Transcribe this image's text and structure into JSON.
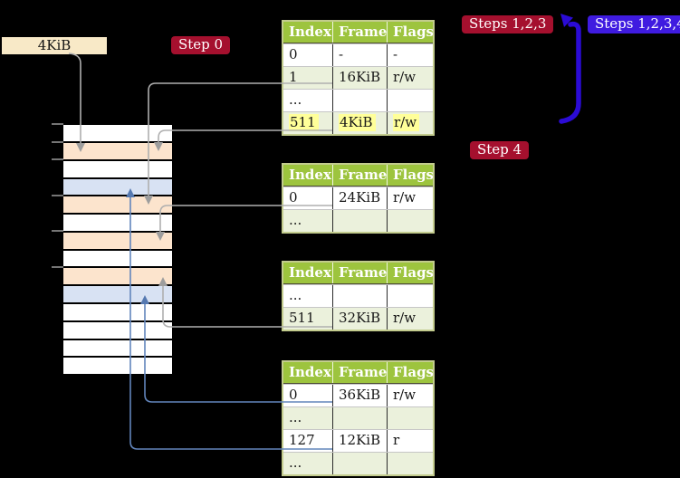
{
  "colors": {
    "background": "#000000",
    "header_green": "#9DC43E",
    "row_green": "#EBF1DC",
    "table_border": "#C3CC8E",
    "highlight_yellow": "#FFFF99",
    "step_red": "#A5102E",
    "step_blue": "#3F1BE0",
    "frame_box_cream": "#F8E9C7",
    "memory_peach": "#FCE4CD",
    "memory_blue": "#D8E2F3",
    "memory_white": "#FFFFFF",
    "connector_gray": "#AFAFAF",
    "connector_blue": "#6285BC",
    "arrow_indigo": "#2B0BD5"
  },
  "frame_size_box": {
    "label": "4KiB"
  },
  "step_labels": [
    {
      "id": "step0",
      "text": "Step 0",
      "style": "red"
    },
    {
      "id": "steps123",
      "text": "Steps 1,2,3",
      "style": "red"
    },
    {
      "id": "steps1234",
      "text": "Steps 1,2,3,4",
      "style": "blue"
    },
    {
      "id": "step4",
      "text": "Step 4",
      "style": "red"
    }
  ],
  "page_tables": [
    {
      "name": "page-table-level4",
      "headers": [
        "Index",
        "Frame",
        "Flags"
      ],
      "rows": [
        {
          "index": "0",
          "frame": "-",
          "flags": "-",
          "shaded": false,
          "highlighted": false
        },
        {
          "index": "1",
          "frame": "16KiB",
          "flags": "r/w",
          "shaded": true,
          "highlighted": false
        },
        {
          "index": "...",
          "frame": "",
          "flags": "",
          "shaded": false,
          "highlighted": false
        },
        {
          "index": "511",
          "frame": "4KiB",
          "flags": "r/w",
          "shaded": true,
          "highlighted": true
        }
      ]
    },
    {
      "name": "page-table-level3",
      "headers": [
        "Index",
        "Frame",
        "Flags"
      ],
      "rows": [
        {
          "index": "0",
          "frame": "24KiB",
          "flags": "r/w",
          "shaded": false,
          "highlighted": false
        },
        {
          "index": "...",
          "frame": "",
          "flags": "",
          "shaded": true,
          "highlighted": false
        }
      ]
    },
    {
      "name": "page-table-level2",
      "headers": [
        "Index",
        "Frame",
        "Flags"
      ],
      "rows": [
        {
          "index": "...",
          "frame": "",
          "flags": "",
          "shaded": false,
          "highlighted": false
        },
        {
          "index": "511",
          "frame": "32KiB",
          "flags": "r/w",
          "shaded": true,
          "highlighted": false
        }
      ]
    },
    {
      "name": "page-table-level1",
      "headers": [
        "Index",
        "Frame",
        "Flags"
      ],
      "rows": [
        {
          "index": "0",
          "frame": "36KiB",
          "flags": "r/w",
          "shaded": false,
          "highlighted": false
        },
        {
          "index": "...",
          "frame": "",
          "flags": "",
          "shaded": true,
          "highlighted": false
        },
        {
          "index": "127",
          "frame": "12KiB",
          "flags": "r",
          "shaded": false,
          "highlighted": false
        },
        {
          "index": "...",
          "frame": "",
          "flags": "",
          "shaded": true,
          "highlighted": false
        }
      ]
    }
  ],
  "memory_strip": {
    "rows": [
      {
        "kind": "free"
      },
      {
        "kind": "page-table"
      },
      {
        "kind": "free"
      },
      {
        "kind": "mapped"
      },
      {
        "kind": "page-table"
      },
      {
        "kind": "free"
      },
      {
        "kind": "page-table"
      },
      {
        "kind": "free"
      },
      {
        "kind": "page-table"
      },
      {
        "kind": "mapped"
      },
      {
        "kind": "free"
      },
      {
        "kind": "free"
      },
      {
        "kind": "free"
      },
      {
        "kind": "free"
      }
    ]
  }
}
